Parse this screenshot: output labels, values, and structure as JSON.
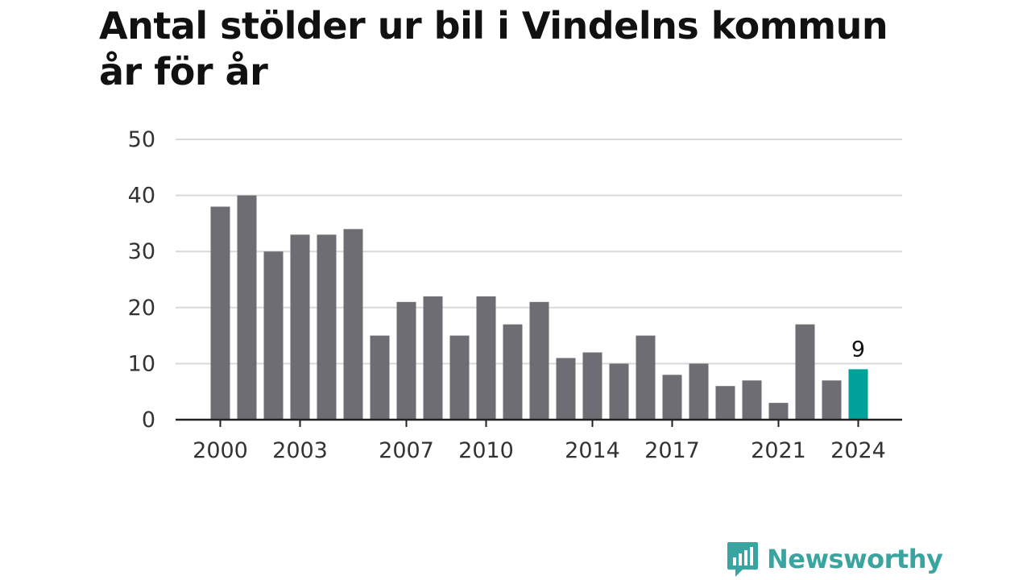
{
  "title_line1": "Antal stölder ur bil i Vindelns kommun",
  "title_line2": "år för år",
  "brand": {
    "name": "Newsworthy",
    "icon": "newsworthy-logo-icon",
    "color": "#3aa5a0"
  },
  "colors": {
    "bar": "#6e6d73",
    "highlight": "#00a19a",
    "grid": "#d9d9d9",
    "axis": "#222222",
    "text": "#333333"
  },
  "chart_data": {
    "type": "bar",
    "categories": [
      "2000",
      "2001",
      "2002",
      "2003",
      "2004",
      "2005",
      "2006",
      "2007",
      "2008",
      "2009",
      "2010",
      "2011",
      "2012",
      "2013",
      "2014",
      "2015",
      "2016",
      "2017",
      "2018",
      "2019",
      "2020",
      "2021",
      "2022",
      "2023",
      "2024"
    ],
    "values": [
      38,
      40,
      30,
      33,
      33,
      34,
      15,
      21,
      22,
      15,
      22,
      17,
      21,
      11,
      12,
      10,
      15,
      8,
      10,
      6,
      7,
      3,
      17,
      7,
      9
    ],
    "x_tick_labels": [
      "2000",
      "2003",
      "2007",
      "2010",
      "2014",
      "2017",
      "2021",
      "2024"
    ],
    "y_ticks": [
      0,
      10,
      20,
      30,
      40,
      50
    ],
    "ylim": [
      0,
      50
    ],
    "highlight_index": 24,
    "highlight_label": "9",
    "grid": true
  }
}
